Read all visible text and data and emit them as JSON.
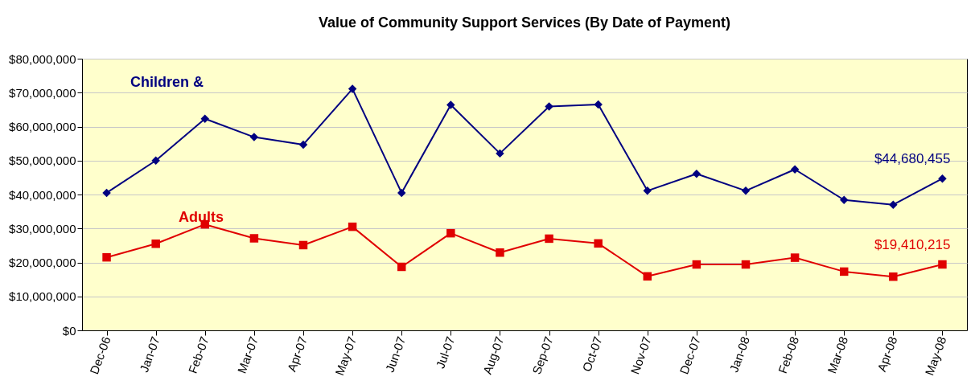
{
  "chart_data": {
    "type": "line",
    "title": "Value of Community Support Services (By Date of Payment)",
    "categories": [
      "Dec-06",
      "Jan-07",
      "Feb-07",
      "Mar-07",
      "Apr-07",
      "May-07",
      "Jun-07",
      "Jul-07",
      "Aug-07",
      "Sep-07",
      "Oct-07",
      "Nov-07",
      "Dec-07",
      "Jan-08",
      "Feb-08",
      "Mar-08",
      "Apr-08",
      "May-08"
    ],
    "series": [
      {
        "name": "Children &",
        "color": "#000080",
        "marker": "diamond",
        "values": [
          40500000,
          50000000,
          62300000,
          56900000,
          54700000,
          71100000,
          40500000,
          66400000,
          52100000,
          65900000,
          66500000,
          41100000,
          46100000,
          41100000,
          47400000,
          38400000,
          37000000,
          44680455
        ],
        "value_labels": [
          null,
          null,
          null,
          null,
          null,
          null,
          null,
          null,
          null,
          null,
          null,
          null,
          null,
          null,
          null,
          null,
          null,
          "$44,680,455"
        ]
      },
      {
        "name": "Adults",
        "color": "#e00000",
        "marker": "square",
        "values": [
          21500000,
          25500000,
          31200000,
          27100000,
          25100000,
          30500000,
          18700000,
          28600000,
          22900000,
          27000000,
          25600000,
          15900000,
          19400000,
          19400000,
          21400000,
          17300000,
          15800000,
          19410215
        ],
        "value_labels": [
          null,
          null,
          null,
          null,
          null,
          null,
          null,
          null,
          null,
          null,
          null,
          null,
          null,
          null,
          null,
          null,
          null,
          "$19,410,215"
        ]
      }
    ],
    "ylim": [
      0,
      80000000
    ],
    "yticks": [
      {
        "value": 0,
        "label": "$0"
      },
      {
        "value": 10000000,
        "label": "$10,000,000"
      },
      {
        "value": 20000000,
        "label": "$20,000,000"
      },
      {
        "value": 30000000,
        "label": "$30,000,000"
      },
      {
        "value": 40000000,
        "label": "$40,000,000"
      },
      {
        "value": 50000000,
        "label": "$50,000,000"
      },
      {
        "value": 60000000,
        "label": "$60,000,000"
      },
      {
        "value": 70000000,
        "label": "$70,000,000"
      },
      {
        "value": 80000000,
        "label": "$80,000,000"
      }
    ],
    "grid": "y",
    "line_style": "solid"
  }
}
